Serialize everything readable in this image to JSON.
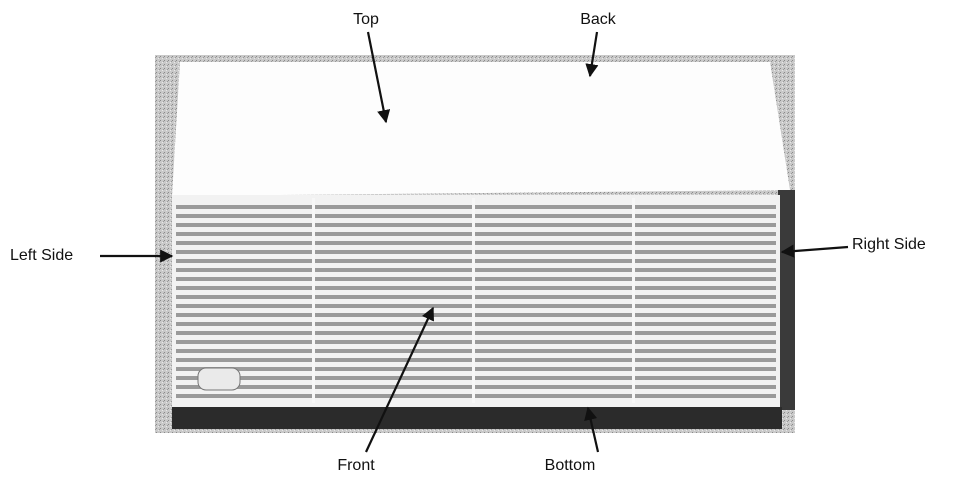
{
  "labels": {
    "top": "Top",
    "back": "Back",
    "left": "Left Side",
    "right": "Right Side",
    "front": "Front",
    "bottom": "Bottom"
  }
}
